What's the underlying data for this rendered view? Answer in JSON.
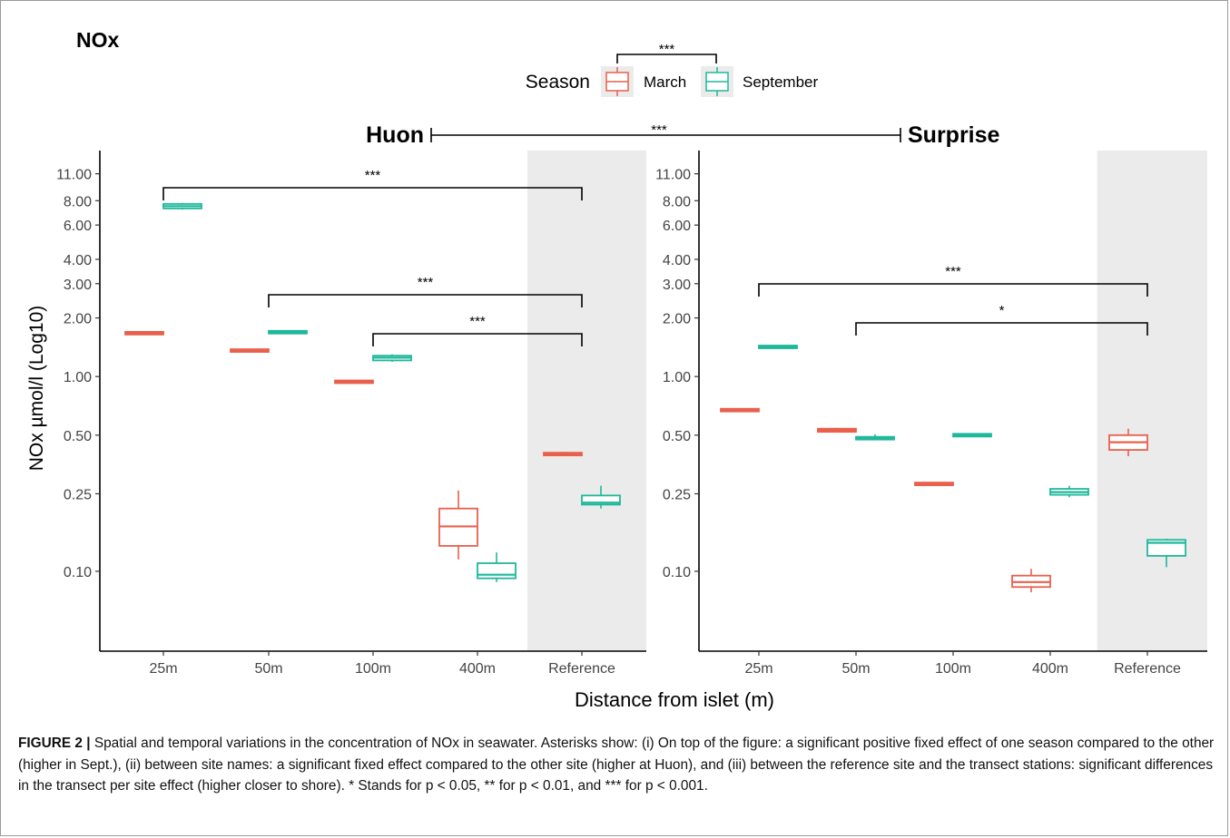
{
  "figure": {
    "title": "NOx",
    "legend": {
      "title": "Season",
      "entries": [
        {
          "label": "March",
          "color": "#e8604c"
        },
        {
          "label": "September",
          "color": "#1fb89a"
        }
      ],
      "significance": "***"
    },
    "panels_sig": "***",
    "xlabel": "Distance from islet (m)",
    "ylabel": "NOx µmol/l (Log10)"
  },
  "caption": {
    "label": "FIGURE 2 |",
    "text": " Spatial and temporal variations in the concentration of NOx in seawater. Asterisks show: (i) On top of the figure: a significant positive fixed effect of one season compared to the other (higher in Sept.), (ii) between site names: a significant fixed effect compared to the other site (higher at Huon), and (iii) between the reference site and the transect stations: significant differences in the transect per site effect (higher closer to shore). * Stands for p < 0.05, ** for p < 0.01, and *** for p < 0.001."
  },
  "chart_data": [
    {
      "type": "box",
      "title": "Huon",
      "categories": [
        "25m",
        "50m",
        "100m",
        "400m",
        "Reference"
      ],
      "shaded_category": "Reference",
      "yscale": "log10",
      "yticks": [
        "11.00",
        "8.00",
        "6.00",
        "4.00",
        "3.00",
        "2.00",
        "1.00",
        "0.50",
        "0.25",
        "0.10"
      ],
      "series": [
        {
          "name": "March",
          "color": "#e8604c",
          "boxes": [
            {
              "min": 1.66,
              "q1": 1.66,
              "median": 1.67,
              "q3": 1.68,
              "max": 1.68
            },
            {
              "min": 1.33,
              "q1": 1.34,
              "median": 1.36,
              "q3": 1.38,
              "max": 1.39
            },
            {
              "min": 0.92,
              "q1": 0.93,
              "median": 0.94,
              "q3": 0.95,
              "max": 0.96
            },
            {
              "min": 0.115,
              "q1": 0.135,
              "median": 0.17,
              "q3": 0.21,
              "max": 0.26
            },
            {
              "min": 0.39,
              "q1": 0.395,
              "median": 0.4,
              "q3": 0.405,
              "max": 0.41
            }
          ]
        },
        {
          "name": "September",
          "color": "#1fb89a",
          "boxes": [
            {
              "min": 7.2,
              "q1": 7.3,
              "median": 7.5,
              "q3": 7.7,
              "max": 7.8
            },
            {
              "min": 1.67,
              "q1": 1.68,
              "median": 1.69,
              "q3": 1.7,
              "max": 1.71
            },
            {
              "min": 1.19,
              "q1": 1.21,
              "median": 1.25,
              "q3": 1.28,
              "max": 1.3
            },
            {
              "min": 0.088,
              "q1": 0.092,
              "median": 0.096,
              "q3": 0.11,
              "max": 0.125
            },
            {
              "min": 0.21,
              "q1": 0.22,
              "median": 0.225,
              "q3": 0.245,
              "max": 0.275
            }
          ]
        }
      ],
      "comparisons": [
        {
          "from": "25m",
          "to": "Reference",
          "label": "***"
        },
        {
          "from": "50m",
          "to": "Reference",
          "label": "***"
        },
        {
          "from": "100m",
          "to": "Reference",
          "label": "***"
        }
      ]
    },
    {
      "type": "box",
      "title": "Surprise",
      "categories": [
        "25m",
        "50m",
        "100m",
        "400m",
        "Reference"
      ],
      "shaded_category": "Reference",
      "yscale": "log10",
      "yticks": [
        "11.00",
        "8.00",
        "6.00",
        "4.00",
        "3.00",
        "2.00",
        "1.00",
        "0.50",
        "0.25",
        "0.10"
      ],
      "series": [
        {
          "name": "March",
          "color": "#e8604c",
          "boxes": [
            {
              "min": 0.66,
              "q1": 0.665,
              "median": 0.67,
              "q3": 0.68,
              "max": 0.685
            },
            {
              "min": 0.515,
              "q1": 0.52,
              "median": 0.53,
              "q3": 0.54,
              "max": 0.545
            },
            {
              "min": 0.275,
              "q1": 0.278,
              "median": 0.28,
              "q3": 0.284,
              "max": 0.287
            },
            {
              "min": 0.078,
              "q1": 0.083,
              "median": 0.088,
              "q3": 0.095,
              "max": 0.103
            },
            {
              "min": 0.39,
              "q1": 0.42,
              "median": 0.46,
              "q3": 0.5,
              "max": 0.54
            }
          ]
        },
        {
          "name": "September",
          "color": "#1fb89a",
          "boxes": [
            {
              "min": 1.4,
              "q1": 1.41,
              "median": 1.42,
              "q3": 1.43,
              "max": 1.44
            },
            {
              "min": 0.47,
              "q1": 0.475,
              "median": 0.48,
              "q3": 0.49,
              "max": 0.505
            },
            {
              "min": 0.495,
              "q1": 0.497,
              "median": 0.5,
              "q3": 0.503,
              "max": 0.505
            },
            {
              "min": 0.24,
              "q1": 0.247,
              "median": 0.255,
              "q3": 0.265,
              "max": 0.275
            },
            {
              "min": 0.105,
              "q1": 0.12,
              "median": 0.14,
              "q3": 0.145,
              "max": 0.147
            }
          ]
        }
      ],
      "comparisons": [
        {
          "from": "25m",
          "to": "Reference",
          "label": "***"
        },
        {
          "from": "50m",
          "to": "Reference",
          "label": "*"
        }
      ]
    }
  ]
}
